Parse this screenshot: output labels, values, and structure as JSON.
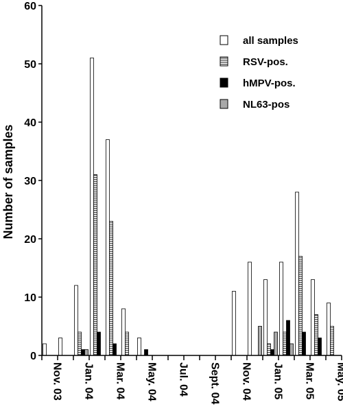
{
  "chart_data": {
    "type": "bar",
    "ylabel": "Number of samples",
    "xlabel": "",
    "ylim": [
      0,
      60
    ],
    "yticks": [
      0,
      10,
      20,
      30,
      40,
      50,
      60
    ],
    "grid": false,
    "legend_position": "top-right",
    "x_tick_labels": [
      "Nov. 03",
      "Jan. 04",
      "Mar. 04",
      "May. 04",
      "Jul. 04",
      "Sept. 04",
      "Nov. 04",
      "Jan. 05",
      "Mar. 05",
      "May. 05"
    ],
    "categories": [
      "Nov. 03",
      "Dec. 03",
      "Jan. 04",
      "Feb. 04",
      "Mar. 04",
      "Apr. 04",
      "May. 04",
      "Jun. 04",
      "Jul. 04",
      "Aug. 04",
      "Sept. 04",
      "Oct. 04",
      "Nov. 04",
      "Dec. 04",
      "Jan. 05",
      "Feb. 05",
      "Mar. 05",
      "Apr. 05",
      "May. 05"
    ],
    "series": [
      {
        "name": "all samples",
        "pattern": "open",
        "values": [
          2,
          3,
          12,
          51,
          37,
          8,
          3,
          0,
          0,
          0,
          0,
          0,
          11,
          16,
          13,
          16,
          28,
          13,
          9
        ]
      },
      {
        "name": "RSV-pos.",
        "pattern": "hatched",
        "values": [
          0,
          0,
          4,
          31,
          23,
          4,
          0,
          0,
          0,
          0,
          0,
          0,
          0,
          0,
          2,
          4,
          17,
          7,
          5
        ]
      },
      {
        "name": "hMPV-pos.",
        "pattern": "black",
        "values": [
          0,
          0,
          1,
          4,
          2,
          0,
          1,
          0,
          0,
          0,
          0,
          0,
          0,
          0,
          1,
          6,
          4,
          3,
          0
        ]
      },
      {
        "name": "NL63-pos",
        "pattern": "gray",
        "values": [
          0,
          0,
          1,
          0,
          0,
          0,
          0,
          0,
          0,
          0,
          0,
          0,
          0,
          5,
          4,
          2,
          0,
          0,
          0
        ]
      }
    ],
    "colors": {
      "open": "#ffffff",
      "hatched": "#7a7a7a",
      "black": "#000000",
      "gray": "#a8a8a8",
      "stroke": "#000000"
    }
  }
}
